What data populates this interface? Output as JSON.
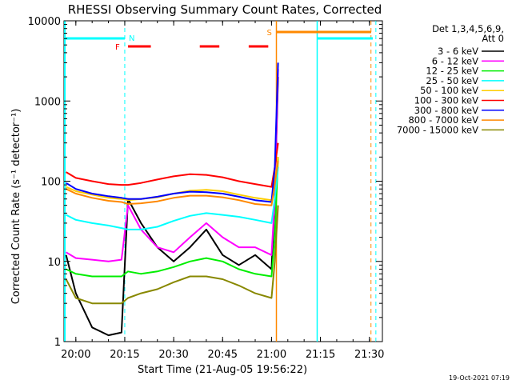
{
  "chart_data": {
    "type": "line",
    "title": "RHESSI Observing Summary Count Rates, Corrected",
    "xlabel": "Start Time (21-Aug-05 19:56:22)",
    "ylabel": "Corrected Count Rate (s⁻¹ detector⁻¹)",
    "y_scale": "log",
    "ylim": [
      1,
      10000
    ],
    "xlim": [
      "19:56:22",
      "21:34:00"
    ],
    "x_ticks": [
      "20:00",
      "20:15",
      "20:30",
      "20:45",
      "21:00",
      "21:15",
      "21:30"
    ],
    "y_ticks": [
      "1",
      "10",
      "100",
      "1000",
      "10000"
    ],
    "legend_title": [
      "Det 1,3,4,5,6,9,",
      "Att 0"
    ],
    "legend_position": "right",
    "series": [
      {
        "name": "3 - 6 keV",
        "color": "#000000",
        "x": [
          "19:57",
          "20:00",
          "20:05",
          "20:10",
          "20:14",
          "20:16",
          "20:20",
          "20:25",
          "20:30",
          "20:35",
          "20:40",
          "20:45",
          "20:50",
          "20:55",
          "21:00",
          "21:01",
          "21:02"
        ],
        "y": [
          12,
          4,
          1.5,
          1.2,
          1.3,
          60,
          30,
          15,
          10,
          15,
          25,
          12,
          9,
          12,
          8,
          60,
          2000
        ]
      },
      {
        "name": "6 - 12 keV",
        "color": "#ff00ff",
        "x": [
          "19:57",
          "20:00",
          "20:05",
          "20:10",
          "20:14",
          "20:16",
          "20:20",
          "20:25",
          "20:30",
          "20:35",
          "20:40",
          "20:45",
          "20:50",
          "20:55",
          "21:00",
          "21:01",
          "21:02"
        ],
        "y": [
          13,
          11,
          10.5,
          10,
          10.5,
          50,
          25,
          15,
          13,
          20,
          30,
          20,
          15,
          15,
          12,
          60,
          2500
        ]
      },
      {
        "name": "12 - 25 keV",
        "color": "#00ee00",
        "x": [
          "19:57",
          "20:00",
          "20:05",
          "20:10",
          "20:14",
          "20:16",
          "20:20",
          "20:25",
          "20:30",
          "20:35",
          "20:40",
          "20:45",
          "20:50",
          "20:55",
          "21:00",
          "21:01",
          "21:02"
        ],
        "y": [
          8,
          7,
          6.5,
          6.5,
          6.5,
          7.5,
          7,
          7.5,
          8.5,
          10,
          11,
          10,
          8,
          7,
          6.5,
          20,
          200
        ]
      },
      {
        "name": "25 - 50 keV",
        "color": "#00ffff",
        "x": [
          "19:57",
          "20:00",
          "20:05",
          "20:10",
          "20:14",
          "20:16",
          "20:20",
          "20:25",
          "20:30",
          "20:35",
          "20:40",
          "20:45",
          "20:50",
          "20:55",
          "21:00",
          "21:01",
          "21:02"
        ],
        "y": [
          38,
          33,
          30,
          28,
          26,
          25,
          25,
          27,
          32,
          37,
          40,
          38,
          36,
          33,
          30,
          60,
          150
        ]
      },
      {
        "name": "50 - 100 keV",
        "color": "#ffcc00",
        "x": [
          "19:57",
          "20:00",
          "20:05",
          "20:10",
          "20:14",
          "20:16",
          "20:20",
          "20:25",
          "20:30",
          "20:35",
          "20:40",
          "20:45",
          "20:50",
          "20:55",
          "21:00",
          "21:01",
          "21:02"
        ],
        "y": [
          85,
          75,
          68,
          62,
          60,
          58,
          60,
          63,
          70,
          76,
          78,
          75,
          68,
          62,
          58,
          100,
          200
        ]
      },
      {
        "name": "100 - 300 keV",
        "color": "#ff0000",
        "x": [
          "19:57",
          "20:00",
          "20:05",
          "20:10",
          "20:14",
          "20:16",
          "20:20",
          "20:25",
          "20:30",
          "20:35",
          "20:40",
          "20:45",
          "20:50",
          "20:55",
          "21:00",
          "21:01",
          "21:02"
        ],
        "y": [
          130,
          110,
          100,
          92,
          90,
          90,
          95,
          105,
          115,
          122,
          120,
          112,
          100,
          92,
          85,
          150,
          300
        ]
      },
      {
        "name": "300 - 800 keV",
        "color": "#0000ff",
        "x": [
          "19:57",
          "20:00",
          "20:05",
          "20:10",
          "20:14",
          "20:16",
          "20:20",
          "20:25",
          "20:30",
          "20:35",
          "20:40",
          "20:45",
          "20:50",
          "20:55",
          "21:00",
          "21:01",
          "21:02"
        ],
        "y": [
          95,
          80,
          70,
          65,
          62,
          60,
          60,
          64,
          70,
          74,
          73,
          70,
          64,
          58,
          55,
          150,
          3000
        ]
      },
      {
        "name": "800 - 7000 keV",
        "color": "#ff8800",
        "x": [
          "19:57",
          "20:00",
          "20:05",
          "20:10",
          "20:14",
          "20:16",
          "20:20",
          "20:25",
          "20:30",
          "20:35",
          "20:40",
          "20:45",
          "20:50",
          "20:55",
          "21:00",
          "21:01",
          "21:02"
        ],
        "y": [
          80,
          70,
          62,
          57,
          55,
          52,
          53,
          56,
          62,
          66,
          66,
          63,
          58,
          52,
          50,
          90,
          180
        ]
      },
      {
        "name": "7000 - 15000 keV",
        "color": "#888800",
        "x": [
          "19:57",
          "20:00",
          "20:05",
          "20:10",
          "20:14",
          "20:16",
          "20:20",
          "20:25",
          "20:30",
          "20:35",
          "20:40",
          "20:45",
          "20:50",
          "20:55",
          "21:00",
          "21:01",
          "21:02"
        ],
        "y": [
          6,
          3.5,
          3,
          3,
          3,
          3.5,
          4,
          4.5,
          5.5,
          6.5,
          6.5,
          6,
          5,
          4,
          3.5,
          10,
          50
        ]
      }
    ],
    "markers": [
      {
        "label": "N",
        "color": "#00ffff"
      },
      {
        "label": "F",
        "color": "#ff0000"
      },
      {
        "label": "S",
        "color": "#ff8800"
      }
    ],
    "footer_date": "19-Oct-2021 07:19"
  }
}
